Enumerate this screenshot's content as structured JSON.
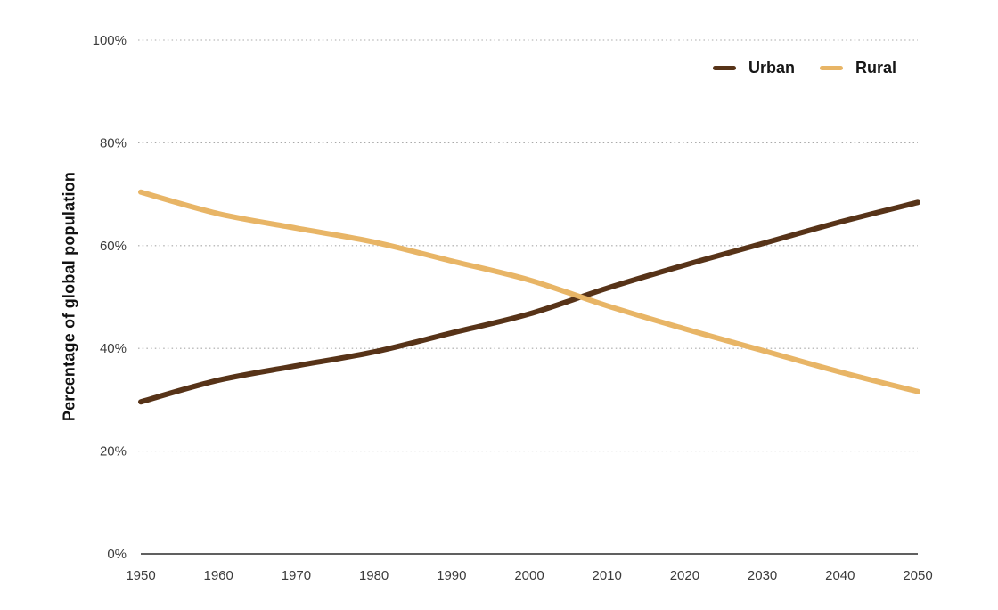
{
  "chart_data": {
    "type": "line",
    "title": "",
    "xlabel": "",
    "ylabel": "Percentage of global population",
    "x": [
      1950,
      1960,
      1970,
      1980,
      1990,
      2000,
      2010,
      2020,
      2030,
      2040,
      2050
    ],
    "x_tick_labels": [
      "1950",
      "1960",
      "1970",
      "1980",
      "1990",
      "2000",
      "2010",
      "2020",
      "2030",
      "2040",
      "2050"
    ],
    "ylim": [
      0,
      100
    ],
    "yticks": [
      0,
      20,
      40,
      60,
      80,
      100
    ],
    "ytick_labels": [
      "0%",
      "20%",
      "40%",
      "60%",
      "80%",
      "100%"
    ],
    "grid": "horizontal-dotted",
    "legend_position": "top-right",
    "series": [
      {
        "name": "Urban",
        "color": "#573318",
        "values": [
          29.6,
          33.8,
          36.6,
          39.3,
          43.0,
          46.7,
          51.7,
          56.2,
          60.4,
          64.6,
          68.4
        ]
      },
      {
        "name": "Rural",
        "color": "#e8b566",
        "values": [
          70.4,
          66.2,
          63.4,
          60.7,
          57.0,
          53.3,
          48.3,
          43.8,
          39.6,
          35.4,
          31.6
        ]
      }
    ]
  },
  "colors": {
    "background": "#ffffff",
    "gridline": "#a8a8a8",
    "axis_line": "#2b2b2b",
    "tick_text": "#3c3c3c",
    "urban_line": "#573318",
    "rural_line": "#e8b566"
  }
}
